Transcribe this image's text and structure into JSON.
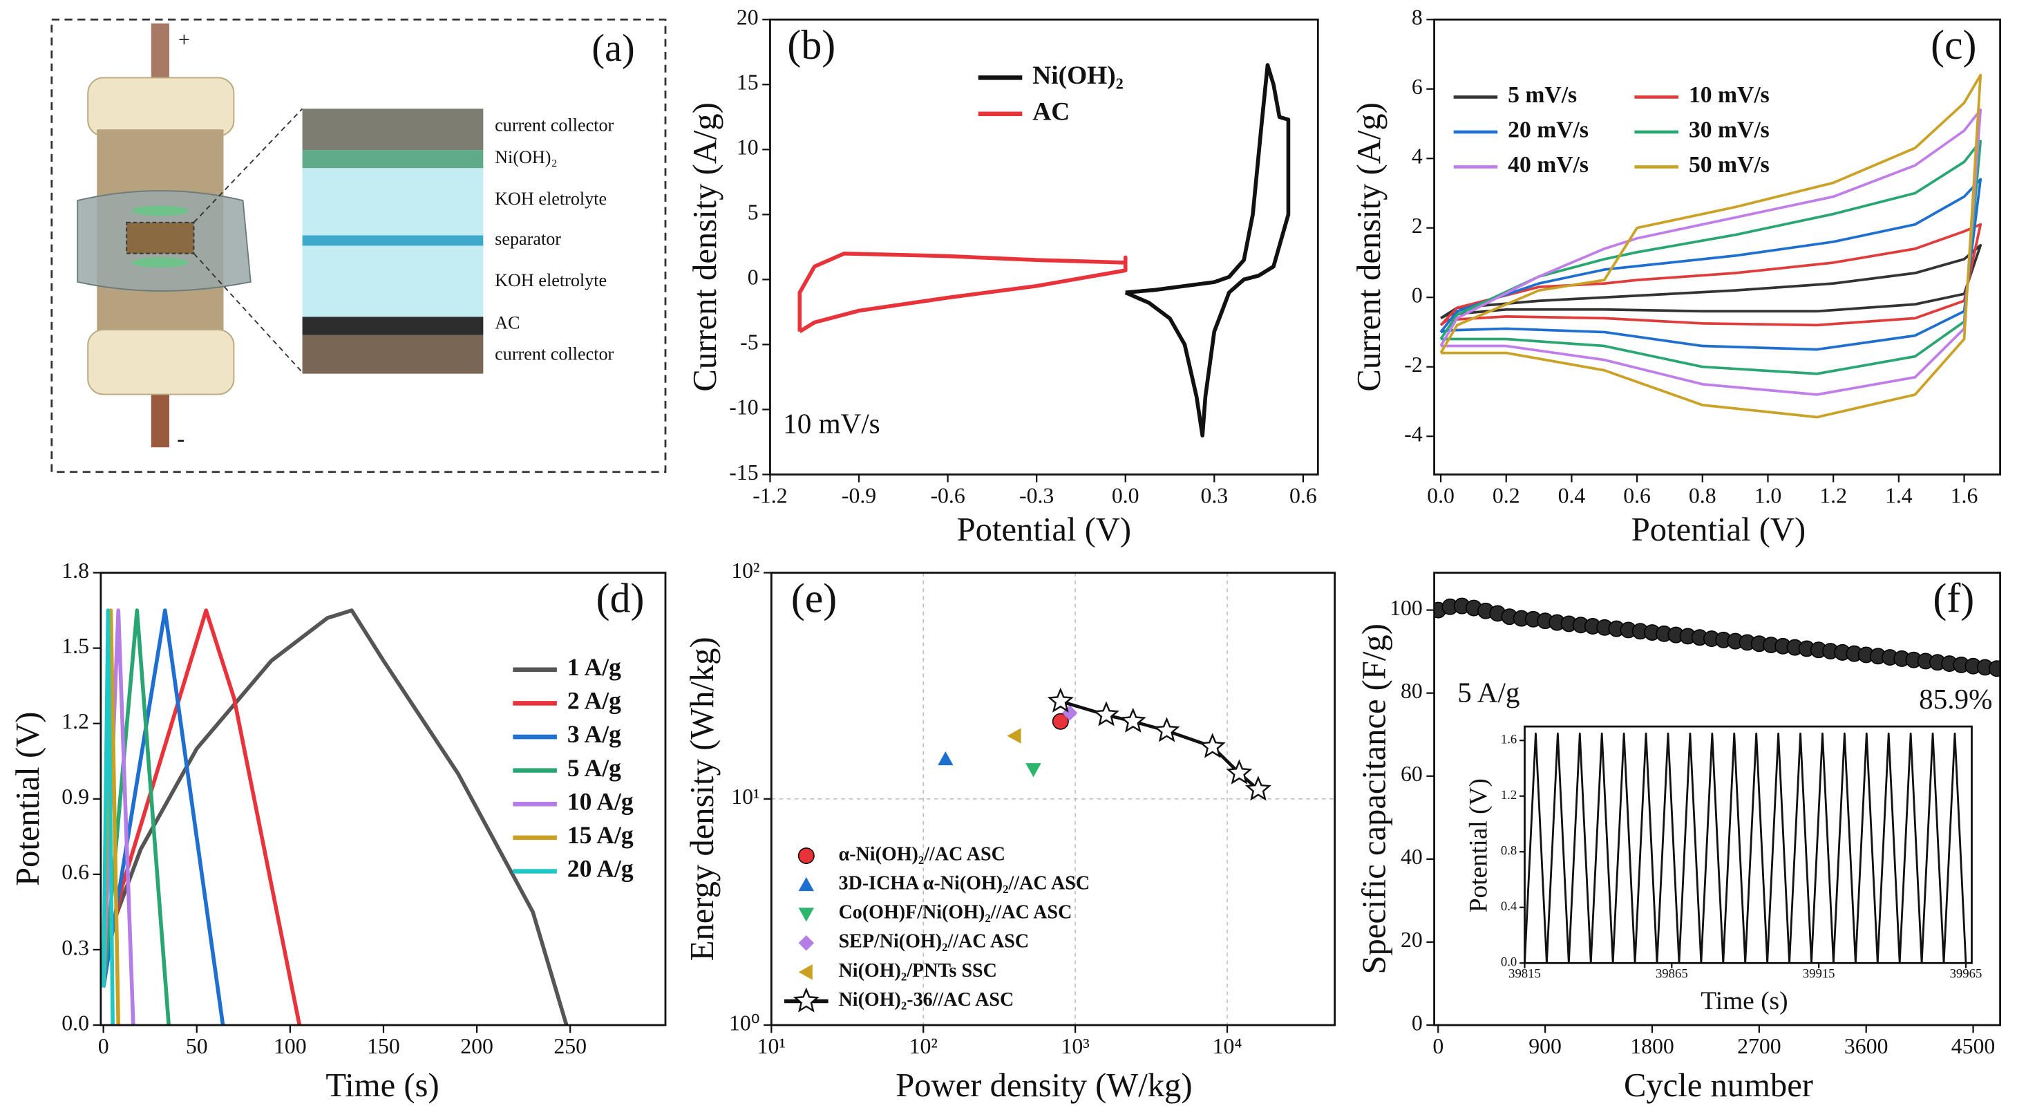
{
  "diagram": {
    "label": "(a)",
    "plus": "+",
    "minus": "-",
    "layers": [
      "current collector",
      "Ni(OH)₂",
      "KOH eletrolyte",
      "separator",
      "KOH eletrolyte",
      "AC",
      "current collector"
    ]
  },
  "chart_data": [
    {
      "type": "line",
      "label": "(b)",
      "xlabel": "Potential (V)",
      "ylabel": "Current density (A/g)",
      "xlim": [
        -1.2,
        0.65
      ],
      "ylim": [
        -15,
        20
      ],
      "xticks": [
        -1.2,
        -0.9,
        -0.6,
        -0.3,
        {
          "value": 0,
          "label": "0.0"
        },
        0.3,
        0.6
      ],
      "yticks": [
        -15,
        -10,
        -5,
        0,
        5,
        10,
        15,
        20
      ],
      "legend": "upper center",
      "annotations": [
        "10 mV/s"
      ],
      "series": [
        {
          "name": "Ni(OH)₂",
          "color": "#111111",
          "x": [
            0.0,
            0.1,
            0.2,
            0.3,
            0.35,
            0.4,
            0.43,
            0.46,
            0.48,
            0.5,
            0.52,
            0.55,
            0.55,
            0.5,
            0.45,
            0.4,
            0.35,
            0.3,
            0.27,
            0.26,
            0.24,
            0.2,
            0.15,
            0.08,
            0.0
          ],
          "values": [
            -1,
            -0.8,
            -0.5,
            -0.2,
            0.2,
            1.5,
            5,
            12,
            16.5,
            15,
            12.5,
            12.3,
            5,
            1,
            0.3,
            0,
            -1,
            -4,
            -9,
            -12,
            -9,
            -5,
            -3,
            -1.8,
            -1
          ]
        },
        {
          "name": "AC",
          "color": "#e8333a",
          "x": [
            -1.1,
            -1.1,
            -1.05,
            -0.95,
            -0.6,
            -0.3,
            0.0,
            0.0,
            0.0,
            -0.3,
            -0.6,
            -0.9,
            -1.05,
            -1.1
          ],
          "values": [
            -4,
            -1,
            1,
            2,
            1.8,
            1.5,
            1.3,
            1.7,
            0.7,
            -0.5,
            -1.4,
            -2.4,
            -3.3,
            -4
          ]
        }
      ]
    },
    {
      "type": "line",
      "label": "(c)",
      "xlabel": "Potential (V)",
      "ylabel": "Current density (A/g)",
      "xlim": [
        -0.02,
        1.71
      ],
      "ylim": [
        -5.1,
        8
      ],
      "xticks": [
        {
          "value": 0,
          "label": "0.0"
        },
        0.2,
        0.4,
        0.6,
        0.8,
        {
          "value": 1,
          "label": "1.0"
        },
        1.2,
        1.4,
        1.6
      ],
      "yticks": [
        -4,
        -2,
        0,
        2,
        4,
        6,
        8
      ],
      "legend": "upper left",
      "x": [
        0,
        0.05,
        0.3,
        0.5,
        0.6,
        0.9,
        1.2,
        1.45,
        1.6,
        1.65,
        1.6,
        1.45,
        1.15,
        0.8,
        0.5,
        0.2,
        0.02,
        0
      ],
      "series": [
        {
          "name": "5 mV/s",
          "color": "#333333",
          "values": [
            -0.6,
            -0.3,
            -0.1,
            0.0,
            0.05,
            0.2,
            0.4,
            0.7,
            1.1,
            1.5,
            0.1,
            -0.2,
            -0.4,
            -0.4,
            -0.35,
            -0.35,
            -0.5,
            -0.6
          ]
        },
        {
          "name": "10 mV/s",
          "color": "#e03c3c",
          "values": [
            -0.8,
            -0.3,
            0.3,
            0.4,
            0.5,
            0.7,
            1.0,
            1.4,
            1.9,
            2.1,
            -0.1,
            -0.6,
            -0.8,
            -0.75,
            -0.6,
            -0.55,
            -0.65,
            -0.8
          ]
        },
        {
          "name": "20 mV/s",
          "color": "#1f6fd1",
          "values": [
            -1.0,
            -0.4,
            0.4,
            0.8,
            0.9,
            1.2,
            1.6,
            2.1,
            2.9,
            3.4,
            -0.4,
            -1.1,
            -1.5,
            -1.4,
            -1.0,
            -0.9,
            -0.95,
            -1.0
          ]
        },
        {
          "name": "30 mV/s",
          "color": "#2aa673",
          "values": [
            -1.2,
            -0.5,
            0.6,
            1.1,
            1.3,
            1.8,
            2.4,
            3.0,
            3.9,
            4.5,
            -0.7,
            -1.7,
            -2.2,
            -2.0,
            -1.4,
            -1.2,
            -1.2,
            -1.2
          ]
        },
        {
          "name": "40 mV/s",
          "color": "#c07ee8",
          "values": [
            -1.4,
            -0.6,
            0.6,
            1.4,
            1.7,
            2.3,
            2.9,
            3.8,
            4.8,
            5.4,
            -0.9,
            -2.3,
            -2.8,
            -2.5,
            -1.8,
            -1.4,
            -1.4,
            -1.4
          ]
        },
        {
          "name": "50 mV/s",
          "color": "#c9a227",
          "values": [
            -1.6,
            -0.8,
            0.2,
            0.5,
            2.0,
            2.6,
            3.3,
            4.3,
            5.6,
            6.4,
            -1.2,
            -2.8,
            -3.45,
            -3.1,
            -2.1,
            -1.6,
            -1.6,
            -1.6
          ]
        }
      ]
    },
    {
      "type": "line",
      "label": "(d)",
      "xlabel": "Time (s)",
      "ylabel": "Potential (V)",
      "xlim": [
        -1.4,
        301
      ],
      "ylim": [
        0,
        1.8
      ],
      "xticks": [
        0,
        50,
        100,
        150,
        200,
        250
      ],
      "yticks": [
        {
          "value": 0,
          "label": "0.0"
        },
        0.3,
        0.6,
        0.9,
        1.2,
        1.5,
        1.8
      ],
      "legend": "center right",
      "series": [
        {
          "name": "1 A/g",
          "color": "#555555",
          "x": [
            0,
            5,
            20,
            50,
            90,
            120,
            133,
            150,
            190,
            230,
            248
          ],
          "values": [
            0.3,
            0.4,
            0.7,
            1.1,
            1.45,
            1.62,
            1.65,
            1.45,
            1.0,
            0.45,
            0
          ]
        },
        {
          "name": "2 A/g",
          "color": "#e8333a",
          "x": [
            0,
            10,
            55,
            70,
            105
          ],
          "values": [
            0.2,
            0.55,
            1.65,
            1.3,
            0
          ]
        },
        {
          "name": "3 A/g",
          "color": "#1f6fd1",
          "x": [
            0,
            33,
            64
          ],
          "values": [
            0.15,
            1.65,
            0
          ]
        },
        {
          "name": "5 A/g",
          "color": "#2aa673",
          "x": [
            0,
            18,
            35
          ],
          "values": [
            0.15,
            1.65,
            0
          ]
        },
        {
          "name": "10 A/g",
          "color": "#b57ee6",
          "x": [
            0,
            8,
            16
          ],
          "values": [
            0.15,
            1.65,
            0
          ]
        },
        {
          "name": "15 A/g",
          "color": "#c9a020",
          "x": [
            0,
            4,
            8
          ],
          "values": [
            0.15,
            1.65,
            0
          ]
        },
        {
          "name": "20 A/g",
          "color": "#1fc7c7",
          "x": [
            0,
            2.5,
            5
          ],
          "values": [
            0.15,
            1.65,
            0
          ]
        }
      ]
    },
    {
      "type": "scatter",
      "label": "(e)",
      "xlabel": "Power density (W/kg)",
      "ylabel": "Energy density (Wh/kg)",
      "xlog": true,
      "ylog": true,
      "grid": true,
      "xlim": [
        10,
        51000
      ],
      "ylim": [
        1,
        100
      ],
      "xticks": [
        {
          "value": 10,
          "label": "10¹"
        },
        {
          "value": 100,
          "label": "10²"
        },
        {
          "value": 1000,
          "label": "10³"
        },
        {
          "value": 10000,
          "label": "10⁴"
        }
      ],
      "yticks": [
        {
          "value": 1,
          "label": "10⁰"
        },
        {
          "value": 10,
          "label": "10¹"
        },
        {
          "value": 100,
          "label": "10²"
        }
      ],
      "legend": "lower left",
      "series": [
        {
          "name": "α-Ni(OH)₂//AC ASC",
          "color": "#e8333a",
          "marker": "circle",
          "x": [
            800
          ],
          "values": [
            22
          ]
        },
        {
          "name": "3D-ICHA α-Ni(OH)₂//AC ASC",
          "color": "#1f6fd1",
          "marker": "triangle-up",
          "x": [
            140
          ],
          "values": [
            15
          ]
        },
        {
          "name": "Co(OH)F/Ni(OH)₂//AC ASC",
          "color": "#2cb56b",
          "marker": "triangle-down",
          "x": [
            530
          ],
          "values": [
            13.5
          ]
        },
        {
          "name": "SEP/Ni(OH)₂//AC ASC",
          "color": "#b57ee6",
          "marker": "diamond",
          "x": [
            920
          ],
          "values": [
            24
          ]
        },
        {
          "name": "Ni(OH)₂/PNTs SSC",
          "color": "#c9a020",
          "marker": "triangle-left",
          "x": [
            400
          ],
          "values": [
            19
          ]
        },
        {
          "name": "Ni(OH)₂-36//AC ASC",
          "color": "#111111",
          "marker": "star",
          "x": [
            800,
            1600,
            2400,
            4000,
            8000,
            12000,
            16000
          ],
          "values": [
            27,
            23.5,
            22,
            20,
            17,
            13,
            11
          ]
        }
      ]
    },
    {
      "type": "line",
      "label": "(f)",
      "xlabel": "Cycle number",
      "ylabel": "Specific capacitance (F/g)",
      "xlim": [
        -33,
        4727
      ],
      "ylim": [
        0,
        109
      ],
      "xticks": [
        0,
        900,
        1800,
        2700,
        3600,
        4500
      ],
      "yticks": [
        0,
        20,
        40,
        60,
        80,
        100
      ],
      "annotations": [
        "5 A/g",
        "85.9%"
      ],
      "series": [
        {
          "color": "#2a2a2a",
          "marker": "circle",
          "x": [
            0,
            100,
            200,
            300,
            400,
            500,
            600,
            700,
            800,
            900,
            1000,
            1100,
            1200,
            1300,
            1400,
            1500,
            1600,
            1700,
            1800,
            1900,
            2000,
            2100,
            2200,
            2300,
            2400,
            2500,
            2600,
            2700,
            2800,
            2900,
            3000,
            3100,
            3200,
            3300,
            3400,
            3500,
            3600,
            3700,
            3800,
            3900,
            4000,
            4100,
            4200,
            4300,
            4400,
            4500,
            4600,
            4700
          ],
          "values": [
            100.0,
            100.8,
            101.0,
            100.5,
            99.8,
            99.2,
            98.4,
            98.0,
            97.8,
            97.4,
            97.0,
            96.7,
            96.4,
            96.1,
            95.8,
            95.5,
            95.2,
            94.9,
            94.6,
            94.3,
            94.0,
            93.7,
            93.4,
            93.1,
            92.8,
            92.5,
            92.2,
            91.9,
            91.6,
            91.3,
            91.0,
            90.7,
            90.4,
            90.1,
            89.8,
            89.5,
            89.2,
            88.9,
            88.6,
            88.3,
            88.0,
            87.7,
            87.4,
            87.1,
            86.8,
            86.5,
            86.2,
            85.9
          ]
        }
      ]
    },
    {
      "type": "line",
      "xlabel": "Time (s)",
      "ylabel": "Potential (V)",
      "xlim": [
        39815,
        39967
      ],
      "ylim": [
        0,
        1.7
      ],
      "xticks": [
        39815,
        39865,
        39915,
        39965
      ],
      "yticks": [
        {
          "value": 0,
          "label": "0.0"
        },
        0.4,
        0.8,
        1.2,
        1.6
      ],
      "series": [
        {
          "color": "#111111",
          "x": [
            39815,
            39818.75,
            39822.5,
            39826.25,
            39830,
            39833.75,
            39837.5,
            39841.25,
            39845,
            39848.75,
            39852.5,
            39856.25,
            39860,
            39863.75,
            39867.5,
            39871.25,
            39875,
            39878.75,
            39882.5,
            39886.25,
            39890,
            39893.75,
            39897.5,
            39901.25,
            39905,
            39908.75,
            39912.5,
            39916.25,
            39920,
            39923.75,
            39927.5,
            39931.25,
            39935,
            39938.75,
            39942.5,
            39946.25,
            39950,
            39953.75,
            39957.5,
            39961.25,
            39965
          ],
          "values": [
            0,
            1.65,
            0,
            1.65,
            0,
            1.65,
            0,
            1.65,
            0,
            1.65,
            0,
            1.65,
            0,
            1.65,
            0,
            1.65,
            0,
            1.65,
            0,
            1.65,
            0,
            1.65,
            0,
            1.65,
            0,
            1.65,
            0,
            1.65,
            0,
            1.65,
            0,
            1.65,
            0,
            1.65,
            0,
            1.65,
            0,
            1.65,
            0,
            1.65,
            0
          ]
        }
      ]
    }
  ]
}
